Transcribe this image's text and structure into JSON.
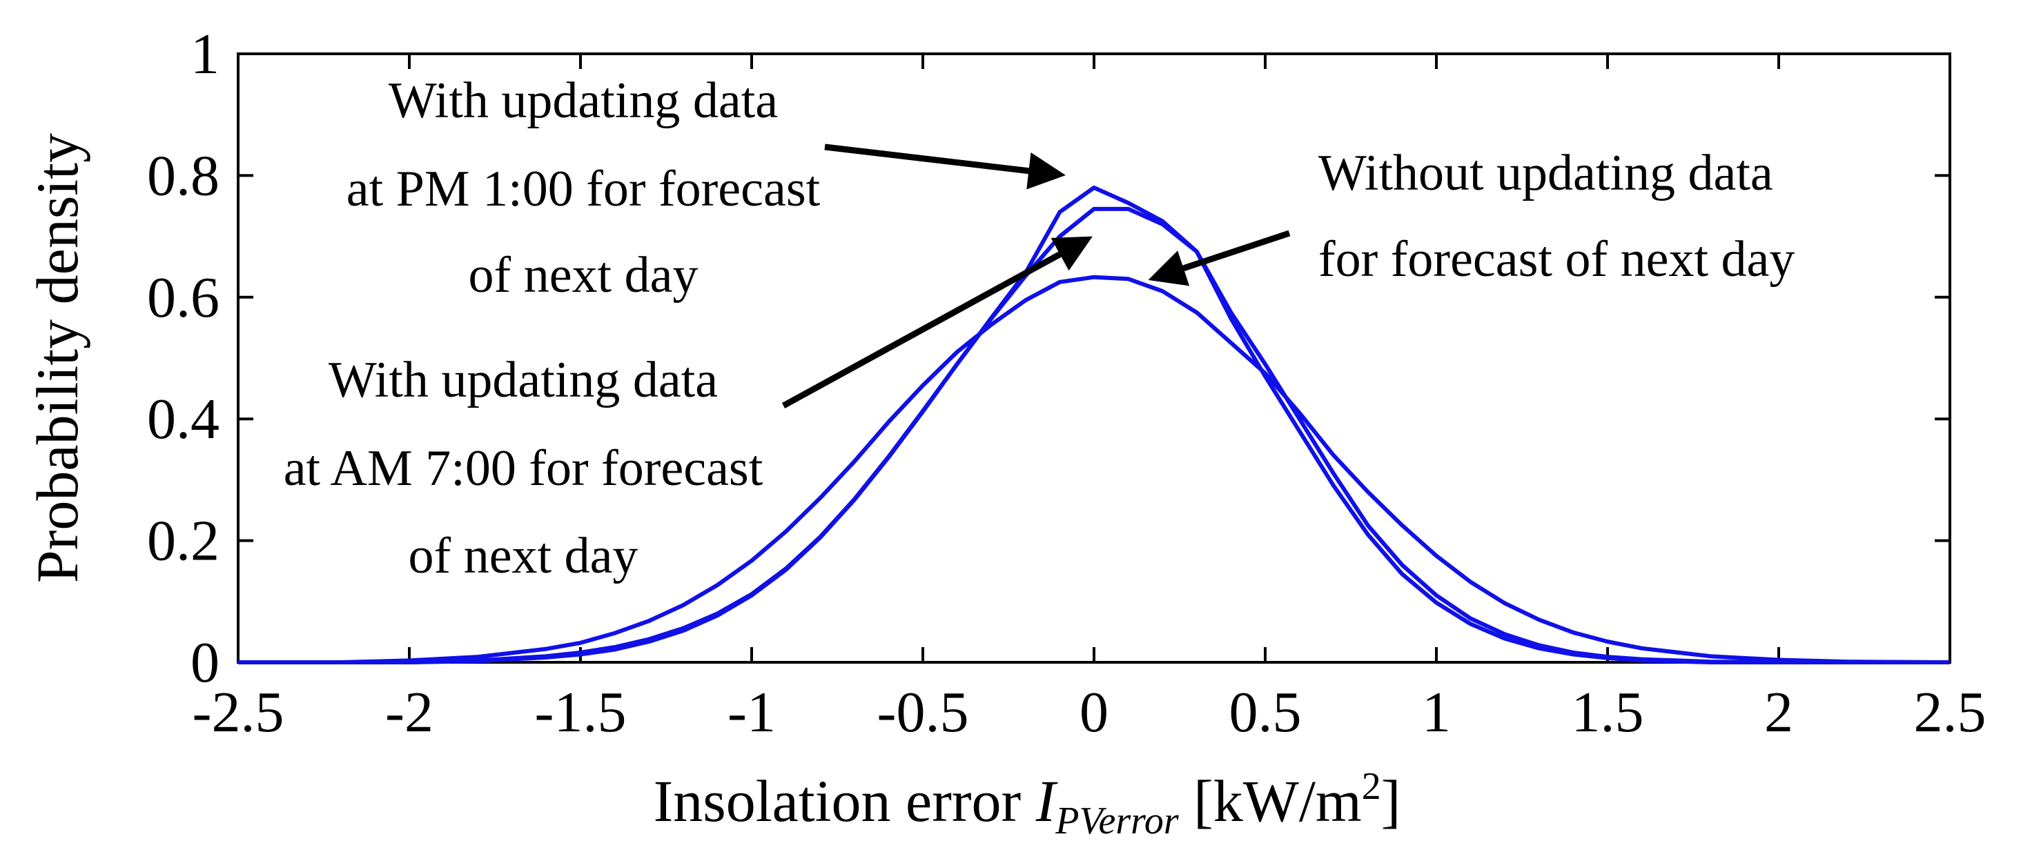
{
  "chart_data": {
    "type": "line",
    "title": "",
    "ylabel": "Probability density",
    "xlabel": {
      "prefix": "Insolation error ",
      "var": "I",
      "sub": "PVerror",
      "units_pre": " [kW/m",
      "units_sup": "2",
      "units_post": "]"
    },
    "xlim": [
      -2.5,
      2.5
    ],
    "ylim": [
      0,
      1
    ],
    "xticks": [
      -2.5,
      -2,
      -1.5,
      -1,
      -0.5,
      0,
      0.5,
      1,
      1.5,
      2,
      2.5
    ],
    "xtick_labels": [
      "-2.5",
      "-2",
      "-1.5",
      "-1",
      "-0.5",
      "0",
      "0.5",
      "1",
      "1.5",
      "2",
      "2.5"
    ],
    "yticks": [
      0,
      0.2,
      0.4,
      0.6,
      0.8,
      1
    ],
    "ytick_labels": [
      "0",
      "0.2",
      "0.4",
      "0.6",
      "0.8",
      "1"
    ],
    "grid": false,
    "line_color": "#1010e8",
    "series": [
      {
        "name": "With updating data at PM 1:00 for forecast of next day",
        "x": [
          -2.5,
          -2.2,
          -2.0,
          -1.8,
          -1.6,
          -1.5,
          -1.4,
          -1.3,
          -1.2,
          -1.1,
          -1.0,
          -0.9,
          -0.8,
          -0.7,
          -0.6,
          -0.5,
          -0.4,
          -0.3,
          -0.2,
          -0.1,
          0.0,
          0.1,
          0.2,
          0.3,
          0.4,
          0.5,
          0.6,
          0.7,
          0.8,
          0.9,
          1.0,
          1.1,
          1.2,
          1.3,
          1.4,
          1.5,
          1.6,
          1.8,
          2.0,
          2.2,
          2.5
        ],
        "y": [
          0.0,
          0.0,
          0.0,
          0.002,
          0.008,
          0.013,
          0.021,
          0.034,
          0.052,
          0.077,
          0.11,
          0.152,
          0.205,
          0.267,
          0.337,
          0.412,
          0.49,
          0.566,
          0.64,
          0.74,
          0.78,
          0.755,
          0.725,
          0.675,
          0.565,
          0.47,
          0.38,
          0.29,
          0.21,
          0.145,
          0.098,
          0.063,
          0.039,
          0.023,
          0.013,
          0.007,
          0.003,
          0.0,
          0.0,
          0.0,
          0.0
        ]
      },
      {
        "name": "With updating data at AM 7:00 for forecast of next day",
        "x": [
          -2.5,
          -2.2,
          -2.0,
          -1.8,
          -1.6,
          -1.5,
          -1.4,
          -1.3,
          -1.2,
          -1.1,
          -1.0,
          -0.9,
          -0.8,
          -0.7,
          -0.6,
          -0.5,
          -0.4,
          -0.3,
          -0.2,
          -0.1,
          0.0,
          0.1,
          0.2,
          0.3,
          0.4,
          0.5,
          0.6,
          0.7,
          0.8,
          0.9,
          1.0,
          1.1,
          1.2,
          1.3,
          1.4,
          1.5,
          1.6,
          1.8,
          2.0,
          2.2,
          2.5
        ],
        "y": [
          0.0,
          0.0,
          0.0,
          0.003,
          0.01,
          0.016,
          0.025,
          0.038,
          0.056,
          0.08,
          0.112,
          0.154,
          0.206,
          0.268,
          0.338,
          0.413,
          0.49,
          0.565,
          0.635,
          0.7,
          0.745,
          0.745,
          0.72,
          0.675,
          0.575,
          0.49,
          0.4,
          0.31,
          0.225,
          0.16,
          0.11,
          0.072,
          0.046,
          0.028,
          0.016,
          0.009,
          0.005,
          0.001,
          0.0,
          0.0,
          0.0
        ]
      },
      {
        "name": "Without updating data for forecast of next day",
        "x": [
          -2.5,
          -2.2,
          -2.0,
          -1.8,
          -1.6,
          -1.5,
          -1.4,
          -1.3,
          -1.2,
          -1.1,
          -1.0,
          -0.9,
          -0.8,
          -0.7,
          -0.6,
          -0.5,
          -0.4,
          -0.3,
          -0.2,
          -0.1,
          0.0,
          0.1,
          0.2,
          0.3,
          0.4,
          0.5,
          0.6,
          0.7,
          0.8,
          0.9,
          1.0,
          1.1,
          1.2,
          1.3,
          1.4,
          1.5,
          1.6,
          1.8,
          2.0,
          2.2,
          2.5
        ],
        "y": [
          0.0,
          0.0,
          0.003,
          0.009,
          0.022,
          0.032,
          0.048,
          0.068,
          0.094,
          0.127,
          0.167,
          0.215,
          0.27,
          0.33,
          0.395,
          0.455,
          0.51,
          0.555,
          0.595,
          0.625,
          0.633,
          0.63,
          0.61,
          0.575,
          0.525,
          0.475,
          0.41,
          0.34,
          0.28,
          0.225,
          0.175,
          0.132,
          0.097,
          0.07,
          0.049,
          0.034,
          0.023,
          0.01,
          0.004,
          0.001,
          0.0
        ]
      }
    ],
    "annotations": [
      {
        "lines": [
          "With updating data",
          "at PM 1:00 for forecast",
          "of next day"
        ]
      },
      {
        "lines": [
          "Without updating data",
          "for forecast of next day"
        ]
      },
      {
        "lines": [
          "With updating data",
          "at AM 7:00 for forecast",
          "of next day"
        ]
      }
    ]
  }
}
